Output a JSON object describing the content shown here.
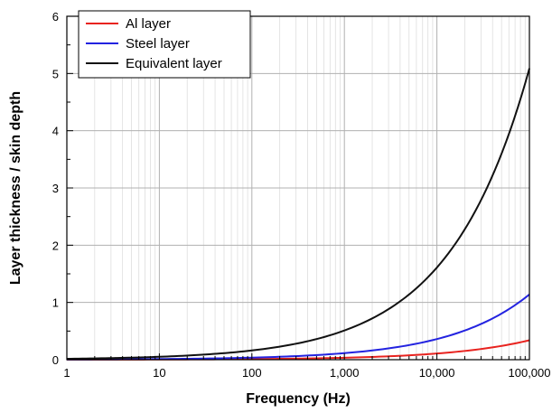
{
  "chart_data": {
    "type": "line",
    "title": "",
    "xlabel": "Frequency (Hz)",
    "ylabel": "Layer thickness / skin depth",
    "x_scale": "log",
    "xlim": [
      1,
      100000
    ],
    "ylim": [
      0,
      6
    ],
    "x_ticks": [
      1,
      10,
      100,
      1000,
      10000,
      100000
    ],
    "x_tick_labels": [
      "1",
      "10",
      "100",
      "1,000",
      "10,000",
      "100,000"
    ],
    "y_ticks": [
      0,
      1,
      2,
      3,
      4,
      5,
      6
    ],
    "y_tick_labels": [
      "0",
      "1",
      "2",
      "3",
      "4",
      "5",
      "6"
    ],
    "grid": true,
    "legend_position": "top-left",
    "x": [
      1,
      10,
      100,
      1000,
      10000,
      100000
    ],
    "series": [
      {
        "name": "Al layer",
        "color": "#e8231f",
        "values": [
          0.0011,
          0.0034,
          0.011,
          0.034,
          0.108,
          0.34
        ]
      },
      {
        "name": "Steel layer",
        "color": "#2323e0",
        "values": [
          0.0036,
          0.0114,
          0.036,
          0.114,
          0.36,
          1.14
        ]
      },
      {
        "name": "Equivalent layer",
        "color": "#111111",
        "values": [
          0.016,
          0.051,
          0.161,
          0.51,
          1.61,
          5.09
        ]
      }
    ]
  }
}
